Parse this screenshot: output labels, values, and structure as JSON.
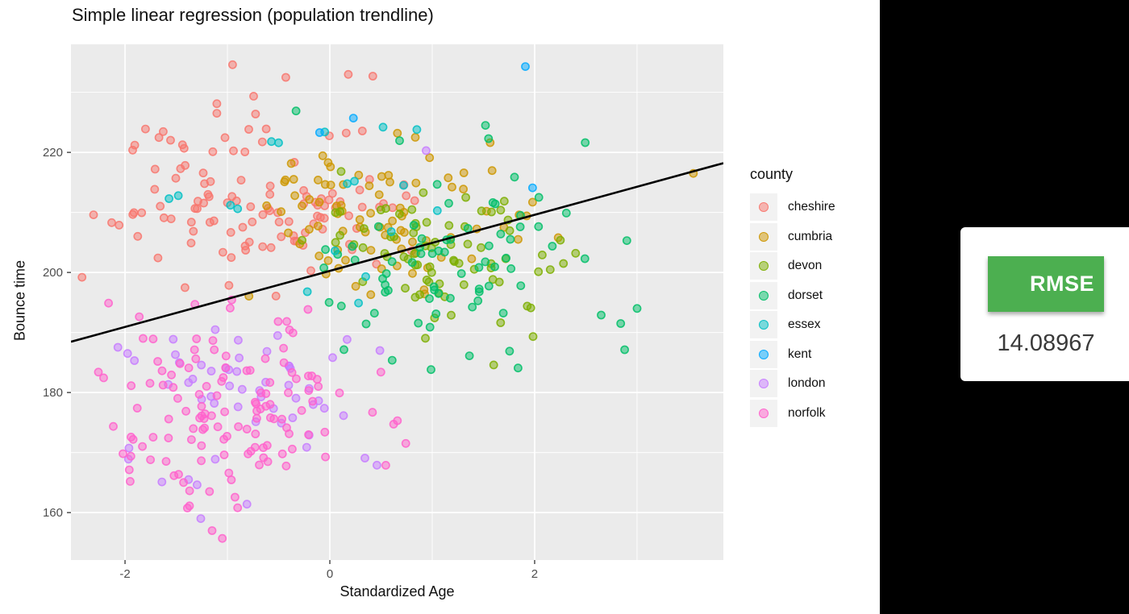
{
  "title": "Simple linear regression (population trendline)",
  "legend": {
    "title": "county"
  },
  "rmse": {
    "label": "RMSE",
    "value": "14.08967"
  },
  "colors": {
    "panel": "#EBEBEB",
    "grid": "#FFFFFF",
    "tick": "#333333",
    "tick_text": "#4D4D4D",
    "trendline": "#000000",
    "accent_green": "#4CAF50",
    "side_panel": "#000000",
    "legend_key": "#F2F2F2"
  },
  "chart_data": {
    "type": "scatter",
    "title": "Simple linear regression (population trendline)",
    "xlabel": "Standardized Age",
    "ylabel": "Bounce time",
    "legend_position": "right",
    "grid": true,
    "seed": 7,
    "point_radius": 4.6,
    "axes": {
      "x": {
        "label": "Standardized Age",
        "domain": [
          -2.528,
          3.843
        ],
        "major": [
          -2,
          0,
          2
        ],
        "minor": [
          -1,
          1,
          3
        ]
      },
      "y": {
        "label": "Bounce time",
        "domain": [
          152.1,
          238.0
        ],
        "major": [
          160,
          180,
          200,
          220
        ],
        "minor": [
          170,
          190,
          210,
          230
        ]
      }
    },
    "trendline": {
      "slope": 4.67,
      "intercept": 200.26,
      "color": "#000000",
      "width": 2.6
    },
    "series": [
      {
        "name": "cheshire",
        "color": "#F8766D",
        "cluster": {
          "n": 115,
          "center": [
            -0.72,
            212.5
          ],
          "sd": [
            0.78,
            7.5
          ],
          "clip": [
            -2.45,
            1.15,
            196,
            231.5
          ]
        },
        "points": [
          [
            -0.95,
            234.6
          ],
          [
            -0.43,
            232.5
          ],
          [
            0.18,
            233.0
          ],
          [
            0.42,
            232.7
          ],
          [
            -1.8,
            223.9
          ],
          [
            -2.13,
            208.3
          ],
          [
            -2.42,
            199.2
          ]
        ]
      },
      {
        "name": "cumbria",
        "color": "#CD9600",
        "cluster": {
          "n": 82,
          "center": [
            0.42,
            209.5
          ],
          "sd": [
            0.62,
            6.0
          ],
          "clip": [
            -0.85,
            2.3,
            196,
            226
          ]
        },
        "points": [
          [
            3.55,
            216.5
          ],
          [
            2.23,
            205.8
          ],
          [
            1.98,
            211.7
          ],
          [
            1.7,
            207.5
          ],
          [
            1.53,
            210.2
          ],
          [
            0.66,
            223.2
          ]
        ]
      },
      {
        "name": "devon",
        "color": "#7CAE00",
        "cluster": {
          "n": 75,
          "center": [
            1.05,
            202.5
          ],
          "sd": [
            0.6,
            7.0
          ],
          "clip": [
            -0.35,
            2.45,
            184,
            223.5
          ]
        },
        "points": [
          [
            1.6,
            184.6
          ],
          [
            2.4,
            203.2
          ]
        ]
      },
      {
        "name": "dorset",
        "color": "#00BE67",
        "cluster": {
          "n": 72,
          "center": [
            1.15,
            200.5
          ],
          "sd": [
            0.66,
            8.0
          ],
          "clip": [
            -0.1,
            2.95,
            183,
            224
          ]
        },
        "points": [
          [
            -0.33,
            226.9
          ],
          [
            1.52,
            224.5
          ],
          [
            1.55,
            222.3
          ],
          [
            2.9,
            205.3
          ],
          [
            2.31,
            209.9
          ],
          [
            3.0,
            194.0
          ],
          [
            2.65,
            192.9
          ]
        ]
      },
      {
        "name": "essex",
        "color": "#00BFC4",
        "points": [
          [
            -1.57,
            212.3
          ],
          [
            -1.48,
            212.8
          ],
          [
            -0.97,
            211.2
          ],
          [
            -0.9,
            210.6
          ],
          [
            -0.57,
            221.8
          ],
          [
            -0.5,
            221.6
          ],
          [
            -0.05,
            223.4
          ],
          [
            0.17,
            214.8
          ],
          [
            0.24,
            215.2
          ],
          [
            0.05,
            203.6
          ],
          [
            0.35,
            199.3
          ],
          [
            -0.22,
            196.8
          ],
          [
            0.52,
            224.2
          ],
          [
            0.85,
            223.8
          ],
          [
            0.72,
            214.5
          ],
          [
            1.05,
            210.3
          ],
          [
            0.28,
            194.9
          ],
          [
            0.6,
            206.8
          ]
        ]
      },
      {
        "name": "kent",
        "color": "#00A9FF",
        "points": [
          [
            1.91,
            234.3
          ],
          [
            0.23,
            225.7
          ],
          [
            -0.1,
            223.3
          ],
          [
            1.98,
            214.1
          ]
        ]
      },
      {
        "name": "london",
        "color": "#C77CFF",
        "cluster": {
          "n": 52,
          "center": [
            -0.8,
            181.0
          ],
          "sd": [
            0.68,
            6.5
          ],
          "clip": [
            -2.15,
            0.95,
            159,
            191.5
          ]
        },
        "points": [
          [
            0.94,
            220.3
          ],
          [
            -1.64,
            165.1
          ],
          [
            -1.38,
            165.5
          ],
          [
            -0.81,
            161.4
          ],
          [
            -1.26,
            159.0
          ],
          [
            0.46,
            167.9
          ]
        ]
      },
      {
        "name": "norfolk",
        "color": "#FF61CC",
        "cluster": {
          "n": 128,
          "center": [
            -0.95,
            178.5
          ],
          "sd": [
            0.66,
            8.2
          ],
          "clip": [
            -2.3,
            0.92,
            155.5,
            196
          ]
        },
        "points": [
          [
            -0.9,
            160.8
          ],
          [
            -1.15,
            157.0
          ],
          [
            -1.05,
            155.7
          ],
          [
            0.66,
            175.3
          ],
          [
            -2.26,
            183.4
          ],
          [
            -2.02,
            169.8
          ],
          [
            -1.95,
            165.2
          ]
        ]
      }
    ]
  }
}
